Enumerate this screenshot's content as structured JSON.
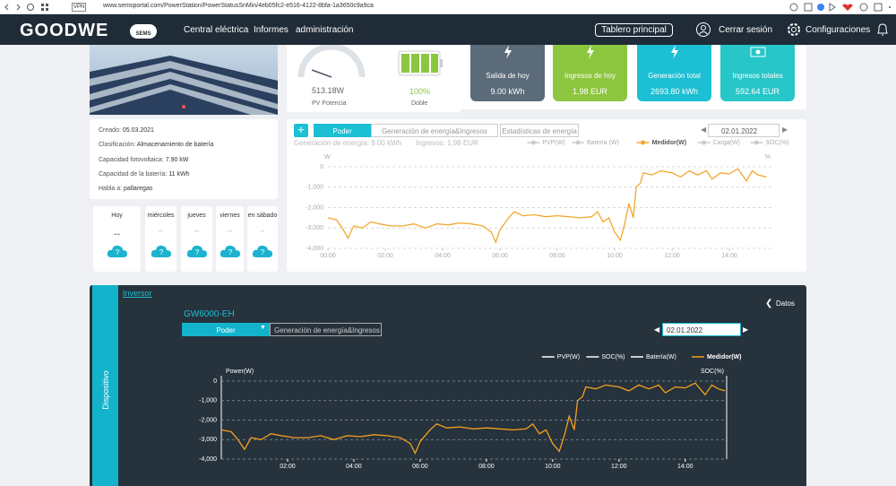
{
  "browser": {
    "url": "www.semsportal.com/PowerStation/PowerStatusSnMin/4eb05fc2-e516-4122-8bfa-1a3650c9a9ca",
    "badge": "VPN"
  },
  "header": {
    "logo": "GOODWE",
    "logo_badge": "SEMS",
    "nav": [
      "Central eléctrica",
      "Informes",
      "administración"
    ],
    "dashboard_button": "Tablero principal",
    "logout": "Cerrar sesión",
    "settings": "Configuraciones"
  },
  "power_card": {
    "pv_power": "513.18W",
    "pv_label": "PV Potencia",
    "battery_level": "100%",
    "battery_label": "Doble"
  },
  "kpis": [
    {
      "title": "Salida de hoy",
      "value": "9.00 kWh"
    },
    {
      "title": "Ingresos de hoy",
      "value": "1.98 EUR"
    },
    {
      "title": "Generación total",
      "value": "2693.80 kWh"
    },
    {
      "title": "Ingresos totales",
      "value": "592.64 EUR"
    }
  ],
  "station_info": [
    {
      "label": "Creado:",
      "value": "05.03.2021"
    },
    {
      "label": "Clasificación:",
      "value": "Almacenamiento de batería"
    },
    {
      "label": "Capacidad fotovoltaica:",
      "value": "7.90 kW"
    },
    {
      "label": "Capacidad de la batería:",
      "value": "11 kWh"
    },
    {
      "label": "Habla a:",
      "value": "pallaregas"
    }
  ],
  "weather": [
    {
      "day": "Hoy",
      "value": "--",
      "icon": "?"
    },
    {
      "day": "miércoles",
      "value": "--",
      "icon": "?"
    },
    {
      "day": "jueves",
      "value": "--",
      "icon": "?"
    },
    {
      "day": "viernes",
      "value": "--",
      "icon": "?"
    },
    {
      "day": "en sábado",
      "value": "--",
      "icon": "?"
    }
  ],
  "energy_panel": {
    "tabs": [
      "Poder",
      "Generación de energía&Ingresos",
      "Estadísticas de energía"
    ],
    "date": "02.01.2022",
    "summary": [
      "Generación de energía: 9.00 kWh",
      "Ingresos: 1.98 EUR"
    ]
  },
  "device_panel": {
    "side_tab": "Dispositivo",
    "breadcrumb": "Inversor",
    "back": "Datos",
    "model": "GW6000-EH",
    "tabs": [
      "Poder",
      "Generación de energía&Ingresos"
    ],
    "date": "02.01.2022"
  },
  "chart_data": [
    {
      "type": "line",
      "y_label": "W",
      "y2_label": "%",
      "legend": [
        {
          "name": "PVP(W)",
          "color": "#cccccc"
        },
        {
          "name": "Batería (W)",
          "color": "#cccccc"
        },
        {
          "name": "Medidor(W)",
          "color": "#f0a830"
        },
        {
          "name": "Carga(W)",
          "color": "#cccccc"
        },
        {
          "name": "SOC(%)",
          "color": "#cccccc"
        }
      ],
      "x": [
        0,
        0.3,
        0.5,
        0.7,
        0.9,
        1.2,
        1.5,
        1.8,
        2.2,
        2.6,
        3.0,
        3.4,
        3.8,
        4.2,
        4.6,
        5.0,
        5.4,
        5.7,
        5.85,
        6.0,
        6.3,
        6.5,
        6.8,
        7.2,
        7.6,
        8.0,
        8.4,
        8.8,
        9.2,
        9.4,
        9.6,
        9.8,
        10.0,
        10.2,
        10.35,
        10.5,
        10.65,
        10.75,
        10.9,
        11.0,
        11.3,
        11.6,
        12.0,
        12.3,
        12.6,
        12.9,
        13.2,
        13.4,
        13.7,
        14.0,
        14.3,
        14.6,
        14.8,
        15.0,
        15.3
      ],
      "series": [
        {
          "color": "#f0a830",
          "values": [
            -2500,
            -2600,
            -3000,
            -3500,
            -2900,
            -3000,
            -2700,
            -2800,
            -2900,
            -2900,
            -2800,
            -3000,
            -2800,
            -2850,
            -2750,
            -2800,
            -2900,
            -3200,
            -3700,
            -3100,
            -2500,
            -2200,
            -2400,
            -2350,
            -2450,
            -2400,
            -2450,
            -2500,
            -2450,
            -2200,
            -2700,
            -2500,
            -3200,
            -3600,
            -2800,
            -1800,
            -2500,
            -1000,
            -800,
            -300,
            -400,
            -200,
            -300,
            -500,
            -200,
            -400,
            -200,
            -600,
            -300,
            -350,
            -100,
            -700,
            -200,
            -400,
            -500
          ]
        }
      ],
      "xlim": [
        0,
        15.5
      ],
      "ylim": [
        -4000,
        0
      ],
      "xticks": [
        {
          "value": 0,
          "label": "00:00"
        },
        {
          "value": 2,
          "label": "02:00"
        },
        {
          "value": 4,
          "label": "04:00"
        },
        {
          "value": 6,
          "label": "06:00"
        },
        {
          "value": 8,
          "label": "08:00"
        },
        {
          "value": 10,
          "label": "10:00"
        },
        {
          "value": 12,
          "label": "12:00"
        },
        {
          "value": 14,
          "label": "14:00"
        }
      ],
      "yticks": [
        0,
        {
          "value": -1000,
          "label": "-1,000"
        },
        {
          "value": -2000,
          "label": "-2,000"
        },
        {
          "value": -3000,
          "label": "-3,000"
        },
        {
          "value": -4000,
          "label": "-4,000"
        }
      ],
      "grid": true
    },
    {
      "type": "line",
      "y_label": "Power(W)",
      "y2_label": "SOC(%)",
      "legend": [
        {
          "name": "PVP(W)",
          "color": "#ffffff"
        },
        {
          "name": "SOC(%)",
          "color": "#ffffff"
        },
        {
          "name": "Batería(W)",
          "color": "#ffffff"
        },
        {
          "name": "Medidor(W)",
          "color": "#f5a020"
        }
      ],
      "x": [
        0,
        0.3,
        0.5,
        0.7,
        0.9,
        1.2,
        1.5,
        1.8,
        2.2,
        2.6,
        3.0,
        3.4,
        3.8,
        4.2,
        4.6,
        5.0,
        5.4,
        5.7,
        5.85,
        6.0,
        6.3,
        6.5,
        6.8,
        7.2,
        7.6,
        8.0,
        8.4,
        8.8,
        9.2,
        9.4,
        9.6,
        9.8,
        10.0,
        10.2,
        10.35,
        10.5,
        10.65,
        10.75,
        10.9,
        11.0,
        11.3,
        11.6,
        12.0,
        12.3,
        12.6,
        12.9,
        13.2,
        13.4,
        13.7,
        14.0,
        14.3,
        14.6,
        14.8,
        15.0,
        15.2
      ],
      "series": [
        {
          "color": "#f5a020",
          "values": [
            -2500,
            -2600,
            -3000,
            -3500,
            -2900,
            -3000,
            -2700,
            -2800,
            -2900,
            -2900,
            -2800,
            -3000,
            -2800,
            -2850,
            -2750,
            -2800,
            -2900,
            -3200,
            -3700,
            -3100,
            -2500,
            -2200,
            -2400,
            -2350,
            -2450,
            -2400,
            -2450,
            -2500,
            -2450,
            -2200,
            -2700,
            -2500,
            -3200,
            -3600,
            -2800,
            -1800,
            -2500,
            -1000,
            -800,
            -300,
            -400,
            -200,
            -300,
            -500,
            -200,
            -400,
            -200,
            -600,
            -300,
            -350,
            -100,
            -700,
            -200,
            -400,
            -500
          ]
        }
      ],
      "xlim": [
        0,
        15.25
      ],
      "ylim": [
        -4000,
        0
      ],
      "xticks": [
        {
          "value": 2,
          "label": "02:00"
        },
        {
          "value": 4,
          "label": "04:00"
        },
        {
          "value": 6,
          "label": "06:00"
        },
        {
          "value": 8,
          "label": "08:00"
        },
        {
          "value": 10,
          "label": "10:00"
        },
        {
          "value": 12,
          "label": "12:00"
        },
        {
          "value": 14,
          "label": "14:00"
        }
      ],
      "yticks": [
        0,
        {
          "value": -1000,
          "label": "-1,000"
        },
        {
          "value": -2000,
          "label": "-2,000"
        },
        {
          "value": -3000,
          "label": "-3,000"
        },
        {
          "value": -4000,
          "label": "-4,000"
        }
      ],
      "grid": true
    }
  ]
}
